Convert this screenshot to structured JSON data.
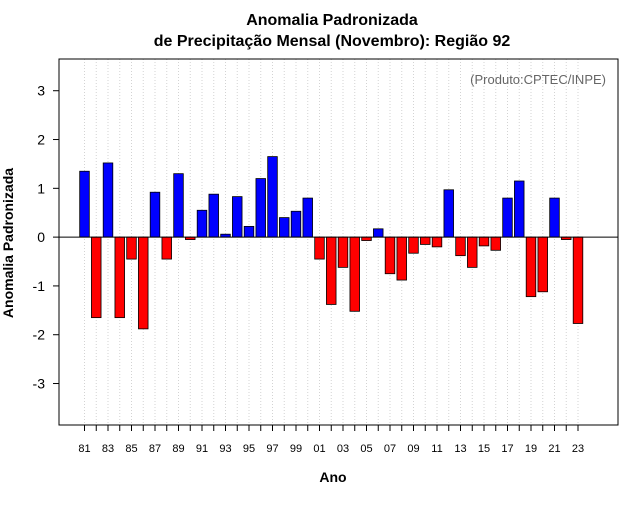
{
  "chart_data": {
    "type": "bar",
    "title_line1": "Anomalia Padronizada",
    "title_line2": "de Precipitação Mensal (Novembro): Região 92",
    "xlabel": "Ano",
    "ylabel": "Anomalia Padronizada",
    "annotation": "(Produto:CPTEC/INPE)",
    "ylim": [
      -3.85,
      3.65
    ],
    "yticks": [
      -3,
      -2,
      -1,
      0,
      1,
      2,
      3
    ],
    "xtick_labels": [
      "81",
      "83",
      "85",
      "87",
      "89",
      "91",
      "93",
      "95",
      "97",
      "99",
      "01",
      "03",
      "05",
      "07",
      "09",
      "11",
      "13",
      "15",
      "17",
      "19",
      "21",
      "23"
    ],
    "colors": {
      "positive": "#0000ff",
      "negative": "#ff0000",
      "grid": "#d3d3d3",
      "axis": "#000000"
    },
    "categories": [
      "1981",
      "1982",
      "1983",
      "1984",
      "1985",
      "1986",
      "1987",
      "1988",
      "1989",
      "1990",
      "1991",
      "1992",
      "1993",
      "1994",
      "1995",
      "1996",
      "1997",
      "1998",
      "1999",
      "2000",
      "2001",
      "2002",
      "2003",
      "2004",
      "2005",
      "2006",
      "2007",
      "2008",
      "2009",
      "2010",
      "2011",
      "2012",
      "2013",
      "2014",
      "2015",
      "2016",
      "2017",
      "2018",
      "2019",
      "2020",
      "2021",
      "2022",
      "2023"
    ],
    "values": [
      1.35,
      -1.65,
      1.52,
      -1.65,
      -0.45,
      -1.88,
      0.92,
      -0.45,
      1.3,
      -0.05,
      0.55,
      0.88,
      0.06,
      0.83,
      0.22,
      1.2,
      1.65,
      0.4,
      0.53,
      0.8,
      -0.45,
      -1.38,
      -0.62,
      -1.52,
      -0.07,
      0.17,
      -0.75,
      -0.88,
      -0.33,
      -0.15,
      -0.2,
      0.97,
      -0.38,
      -0.62,
      -0.18,
      -0.27,
      0.8,
      1.15,
      -1.22,
      -1.12,
      0.8,
      -0.05,
      -1.77
    ]
  }
}
